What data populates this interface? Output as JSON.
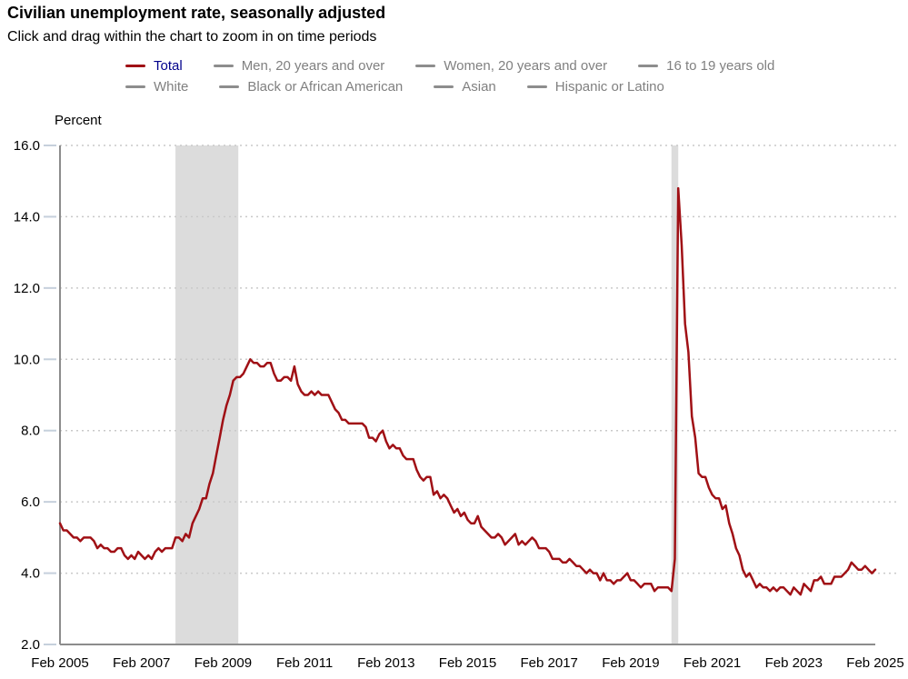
{
  "header": {
    "title": "Civilian unemployment rate, seasonally adjusted",
    "subtitle": "Click and drag within the chart to zoom in on time periods"
  },
  "legend": {
    "position": "top",
    "active_text_color": "#00008b",
    "inactive_text_color": "#808080",
    "inactive_dash_color": "#8d8d8d",
    "items": [
      {
        "label": "Total",
        "active": true,
        "color": "#a01015"
      },
      {
        "label": "Men, 20 years and over",
        "active": false
      },
      {
        "label": "Women, 20 years and over",
        "active": false
      },
      {
        "label": "16 to 19 years old",
        "active": false
      },
      {
        "label": "White",
        "active": false
      },
      {
        "label": "Black or African American",
        "active": false
      },
      {
        "label": "Asian",
        "active": false
      },
      {
        "label": "Hispanic or Latino",
        "active": false
      }
    ]
  },
  "chart_data": {
    "type": "line",
    "title": "Civilian unemployment rate, seasonally adjusted",
    "xlabel": "",
    "ylabel": "Percent",
    "ylim": [
      2.0,
      16.0
    ],
    "y_tick_step": 2.0,
    "y_tick_labels": [
      "2.0",
      "4.0",
      "6.0",
      "8.0",
      "10.0",
      "12.0",
      "14.0",
      "16.0"
    ],
    "x_tick_labels": [
      "Feb 2005",
      "Feb 2007",
      "Feb 2009",
      "Feb 2011",
      "Feb 2013",
      "Feb 2015",
      "Feb 2017",
      "Feb 2019",
      "Feb 2021",
      "Feb 2023",
      "Feb 2025"
    ],
    "x_months_per_tick": 24,
    "x_unit": "month",
    "x_range": [
      "2005-02",
      "2025-02"
    ],
    "grid": "dotted-horizontal",
    "grid_color": "#c9c9c9",
    "axis_color": "#8c8c8c",
    "tick_color": "#c6d0dc",
    "band_color": "#dcdcdc",
    "recession_bands": [
      {
        "from_month_index": 34,
        "to_month_index": 52.5,
        "label": "2008-2009 recession"
      },
      {
        "from_month_index": 180,
        "to_month_index": 182,
        "label": "2020 recession"
      }
    ],
    "series": [
      {
        "name": "Total",
        "color": "#a01015",
        "values": [
          5.4,
          5.2,
          5.2,
          5.1,
          5.0,
          5.0,
          4.9,
          5.0,
          5.0,
          5.0,
          4.9,
          4.7,
          4.8,
          4.7,
          4.7,
          4.6,
          4.6,
          4.7,
          4.7,
          4.5,
          4.4,
          4.5,
          4.4,
          4.6,
          4.5,
          4.4,
          4.5,
          4.4,
          4.6,
          4.7,
          4.6,
          4.7,
          4.7,
          4.7,
          5.0,
          5.0,
          4.9,
          5.1,
          5.0,
          5.4,
          5.6,
          5.8,
          6.1,
          6.1,
          6.5,
          6.8,
          7.3,
          7.8,
          8.3,
          8.7,
          9.0,
          9.4,
          9.5,
          9.5,
          9.6,
          9.8,
          10.0,
          9.9,
          9.9,
          9.8,
          9.8,
          9.9,
          9.9,
          9.6,
          9.4,
          9.4,
          9.5,
          9.5,
          9.4,
          9.8,
          9.3,
          9.1,
          9.0,
          9.0,
          9.1,
          9.0,
          9.1,
          9.0,
          9.0,
          9.0,
          8.8,
          8.6,
          8.5,
          8.3,
          8.3,
          8.2,
          8.2,
          8.2,
          8.2,
          8.2,
          8.1,
          7.8,
          7.8,
          7.7,
          7.9,
          8.0,
          7.7,
          7.5,
          7.6,
          7.5,
          7.5,
          7.3,
          7.2,
          7.2,
          7.2,
          6.9,
          6.7,
          6.6,
          6.7,
          6.7,
          6.2,
          6.3,
          6.1,
          6.2,
          6.1,
          5.9,
          5.7,
          5.8,
          5.6,
          5.7,
          5.5,
          5.4,
          5.4,
          5.6,
          5.3,
          5.2,
          5.1,
          5.0,
          5.0,
          5.1,
          5.0,
          4.8,
          4.9,
          5.0,
          5.1,
          4.8,
          4.9,
          4.8,
          4.9,
          5.0,
          4.9,
          4.7,
          4.7,
          4.7,
          4.6,
          4.4,
          4.4,
          4.4,
          4.3,
          4.3,
          4.4,
          4.3,
          4.2,
          4.2,
          4.1,
          4.0,
          4.1,
          4.0,
          4.0,
          3.8,
          4.0,
          3.8,
          3.8,
          3.7,
          3.8,
          3.8,
          3.9,
          4.0,
          3.8,
          3.8,
          3.7,
          3.6,
          3.7,
          3.7,
          3.7,
          3.5,
          3.6,
          3.6,
          3.6,
          3.6,
          3.5,
          4.4,
          14.8,
          13.2,
          11.0,
          10.2,
          8.4,
          7.8,
          6.8,
          6.7,
          6.7,
          6.4,
          6.2,
          6.1,
          6.1,
          5.8,
          5.9,
          5.4,
          5.1,
          4.7,
          4.5,
          4.1,
          3.9,
          4.0,
          3.8,
          3.6,
          3.7,
          3.6,
          3.6,
          3.5,
          3.6,
          3.5,
          3.6,
          3.6,
          3.5,
          3.4,
          3.6,
          3.5,
          3.4,
          3.7,
          3.6,
          3.5,
          3.8,
          3.8,
          3.9,
          3.7,
          3.7,
          3.7,
          3.9,
          3.9,
          3.9,
          4.0,
          4.1,
          4.3,
          4.2,
          4.1,
          4.1,
          4.2,
          4.1,
          4.0,
          4.1
        ]
      }
    ]
  }
}
